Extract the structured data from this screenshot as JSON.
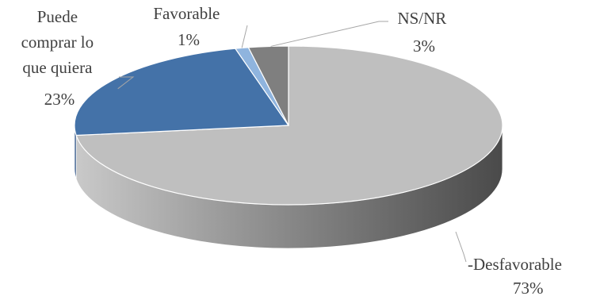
{
  "chart_data": {
    "type": "pie",
    "style": "3d",
    "title": "",
    "slices": [
      {
        "label_lines": [
          "-Desfavorable"
        ],
        "pct_label": "73%",
        "value": 73,
        "color": "#bfbfbf",
        "side_color": "#8c8c8c"
      },
      {
        "label_lines": [
          "Puede",
          "comprar lo",
          "que quiera"
        ],
        "pct_label": "23%",
        "value": 23,
        "color": "#4472a8",
        "side_color": "#2f5486"
      },
      {
        "label_lines": [
          "Favorable"
        ],
        "pct_label": "1%",
        "value": 1,
        "color": "#8fb4de",
        "side_color": "#6e93bd"
      },
      {
        "label_lines": [
          "NS/NR"
        ],
        "pct_label": "3%",
        "value": 3,
        "color": "#7f7f7f",
        "side_color": "#555555"
      }
    ]
  }
}
